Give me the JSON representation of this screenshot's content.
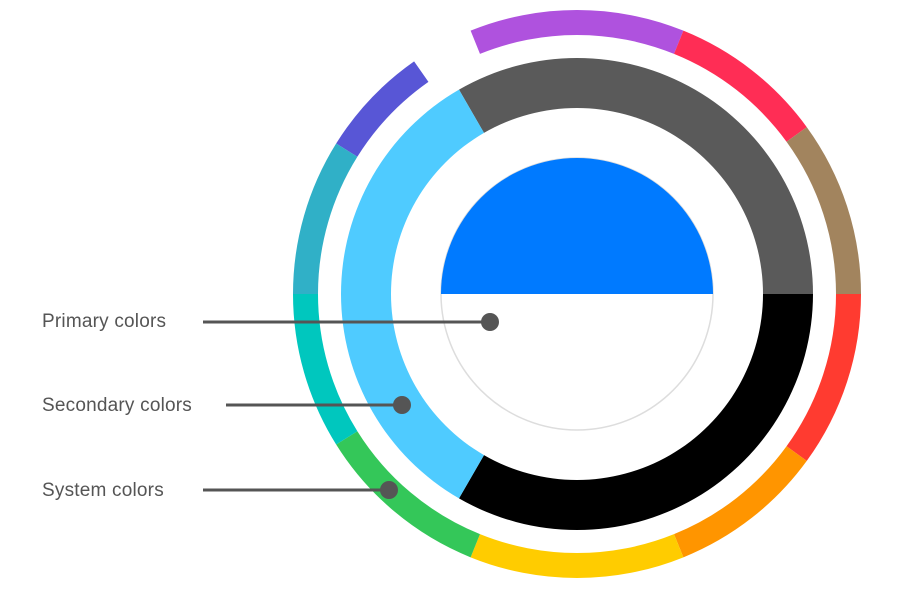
{
  "callouts": [
    {
      "key": "primary",
      "label": "Primary colors"
    },
    {
      "key": "secondary",
      "label": "Secondary colors"
    },
    {
      "key": "system",
      "label": "System colors"
    }
  ],
  "outer_ring": {
    "name": "system colors",
    "segments": [
      {
        "color": "#5856D6"
      },
      {
        "color": "#AF52DE"
      },
      {
        "color": "#FF2D55"
      },
      {
        "color": "#A2845E"
      },
      {
        "color": "#FF3B30"
      },
      {
        "color": "#FF9500"
      },
      {
        "color": "#FFCC00"
      },
      {
        "color": "#34C759"
      },
      {
        "color": "#00C7BE"
      },
      {
        "color": "#30B0C7"
      }
    ]
  },
  "middle_ring": {
    "name": "secondary colors",
    "segments": [
      {
        "color": "#5A5A5A"
      },
      {
        "color": "#000000"
      },
      {
        "color": "#4FCBFF"
      }
    ]
  },
  "inner_disc": {
    "name": "primary colors",
    "top_half_color": "#007AFF",
    "bottom_half_color": "#FFFFFF",
    "outline_color": "#DDDDDD"
  },
  "leader_color": "#555555"
}
